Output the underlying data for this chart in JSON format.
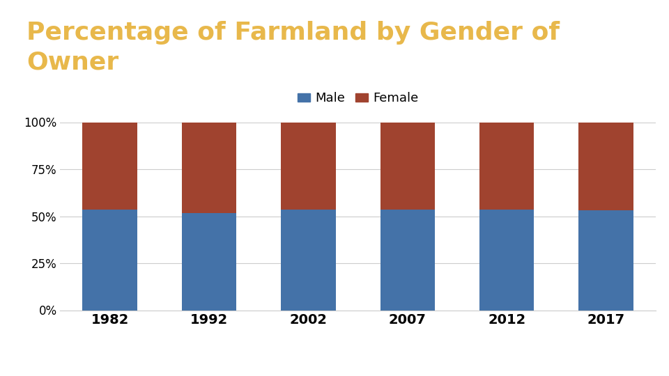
{
  "title_line1": "Percentage of Farmland by Gender of",
  "title_line2": "Owner",
  "title_color": "#E8B84B",
  "title_fontsize": 26,
  "title_fontweight": "bold",
  "years": [
    "1982",
    "1992",
    "2002",
    "2007",
    "2012",
    "2017"
  ],
  "male_pct": [
    53.5,
    51.5,
    53.5,
    53.5,
    53.5,
    53.0
  ],
  "female_pct": [
    46.5,
    48.5,
    46.5,
    46.5,
    46.5,
    47.0
  ],
  "male_color": "#4472A8",
  "female_color": "#A0432F",
  "legend_labels": [
    "Male",
    "Female"
  ],
  "yticks": [
    0,
    25,
    50,
    75,
    100
  ],
  "ytick_labels": [
    "0%",
    "25%",
    "50%",
    "75%",
    "100%"
  ],
  "background_color": "#FFFFFF",
  "grid_color": "#CCCCCC",
  "bar_width": 0.55,
  "footer_color": "#CC0000",
  "top_bar_color": "#CC0000"
}
